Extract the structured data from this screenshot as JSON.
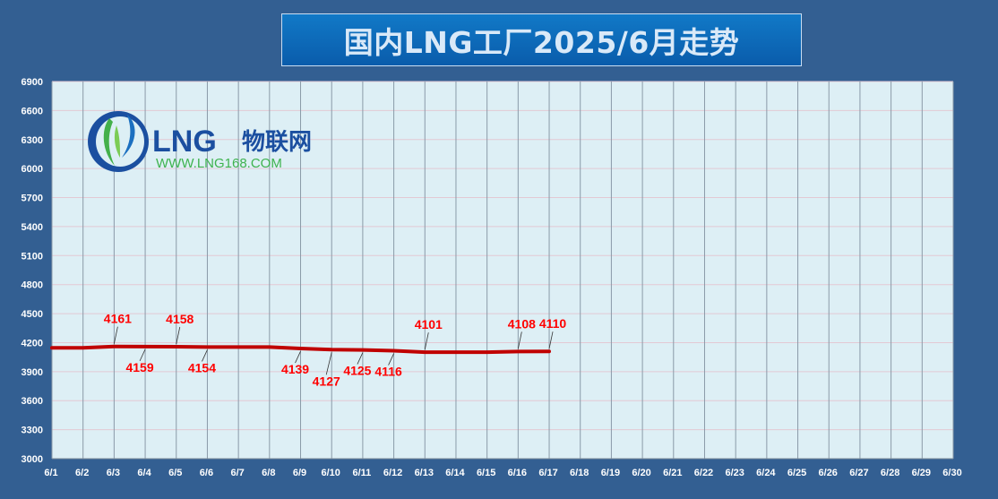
{
  "title": "国内LNG工厂2025/6月走势",
  "logo": {
    "brand": "LNG物联网",
    "brand_latin": "LNG",
    "brand_cn": "物联网",
    "url": "WWW.LNG168.COM"
  },
  "chart_data": {
    "type": "line",
    "title": "国内LNG工厂2025/6月走势",
    "categories": [
      "6/1",
      "6/2",
      "6/3",
      "6/4",
      "6/5",
      "6/6",
      "6/7",
      "6/8",
      "6/9",
      "6/10",
      "6/11",
      "6/12",
      "6/13",
      "6/14",
      "6/15",
      "6/16",
      "6/17",
      "6/18",
      "6/19",
      "6/20",
      "6/21",
      "6/22",
      "6/23",
      "6/24",
      "6/25",
      "6/26",
      "6/27",
      "6/28",
      "6/29",
      "6/30"
    ],
    "series": [
      {
        "values": [
          4147,
          4147,
          4161,
          4159,
          4158,
          4154,
          4154,
          4154,
          4139,
          4127,
          4125,
          4116,
          4101,
          4101,
          4101,
          4108,
          4110,
          null,
          null,
          null,
          null,
          null,
          null,
          null,
          null,
          null,
          null,
          null,
          null,
          null
        ],
        "color": "#c00000"
      }
    ],
    "data_labels": [
      {
        "day": "6/3",
        "value": 4161,
        "text": "4161",
        "side": "above"
      },
      {
        "day": "6/4",
        "value": 4159,
        "text": "4159",
        "side": "below"
      },
      {
        "day": "6/5",
        "value": 4158,
        "text": "4158",
        "side": "above"
      },
      {
        "day": "6/6",
        "value": 4154,
        "text": "4154",
        "side": "below"
      },
      {
        "day": "6/9",
        "value": 4139,
        "text": "4139",
        "side": "below"
      },
      {
        "day": "6/10",
        "value": 4127,
        "text": "4127",
        "side": "below"
      },
      {
        "day": "6/11",
        "value": 4125,
        "text": "4125",
        "side": "below"
      },
      {
        "day": "6/12",
        "value": 4116,
        "text": "4116",
        "side": "below"
      },
      {
        "day": "6/13",
        "value": 4101,
        "text": "4101",
        "side": "above"
      },
      {
        "day": "6/16",
        "value": 4108,
        "text": "4108",
        "side": "above"
      },
      {
        "day": "6/17",
        "value": 4110,
        "text": "4110",
        "side": "above"
      }
    ],
    "y_ticks": [
      3000,
      3300,
      3600,
      3900,
      4200,
      4500,
      4800,
      5100,
      5400,
      5700,
      6000,
      6300,
      6600,
      6900
    ],
    "ylim": [
      3000,
      6900
    ],
    "grid": true,
    "colors": {
      "plot_bg": "#ddeff5",
      "page_bg": "#335f92",
      "vgrid": "#8a9aa8",
      "hgrid": "#e3c9d4",
      "label": "#ff0000"
    }
  }
}
